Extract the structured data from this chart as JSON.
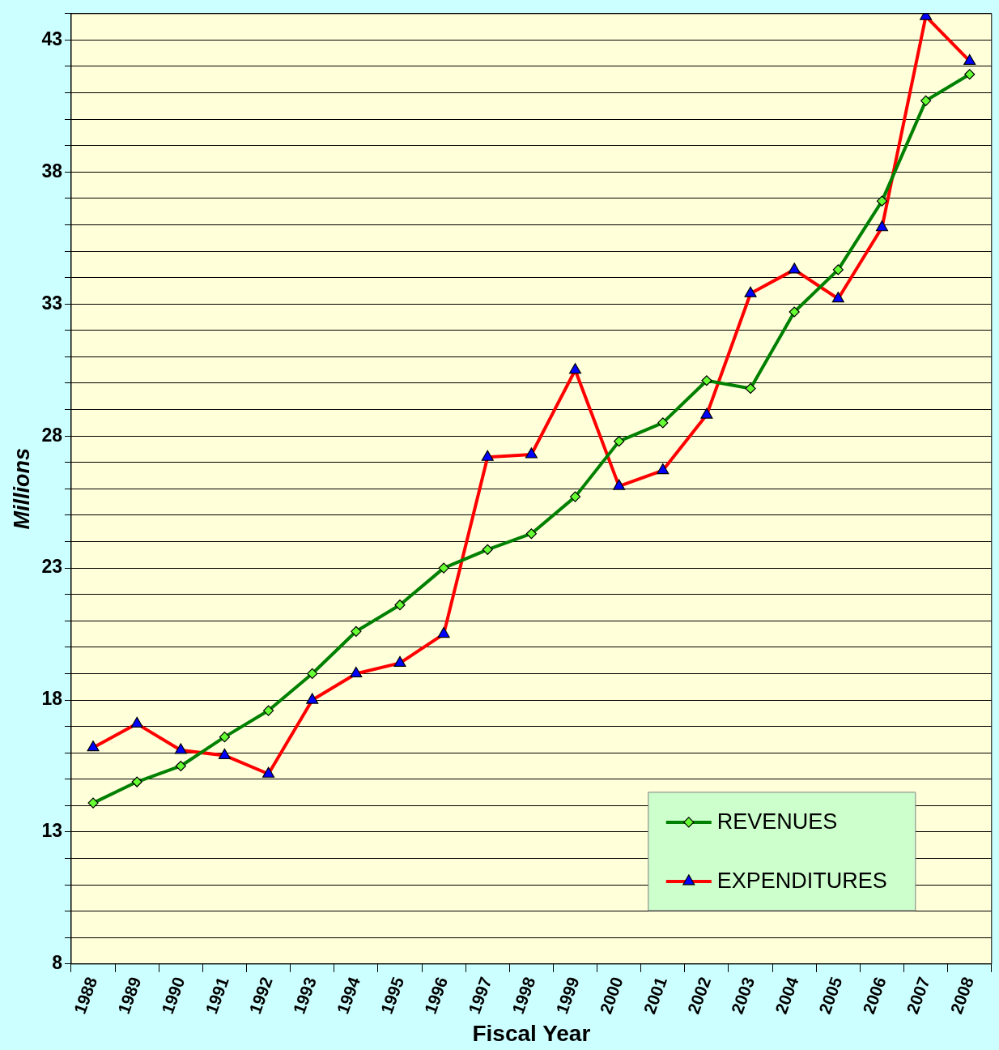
{
  "chart_data": {
    "type": "line",
    "xlabel": "Fiscal Year",
    "ylabel": "Millions",
    "categories": [
      "1988",
      "1989",
      "1990",
      "1991",
      "1992",
      "1993",
      "1994",
      "1995",
      "1996",
      "1997",
      "1998",
      "1999",
      "2000",
      "2001",
      "2002",
      "2003",
      "2004",
      "2005",
      "2006",
      "2007",
      "2008"
    ],
    "series": [
      {
        "name": "REVENUES",
        "color": "#008000",
        "marker": "diamond",
        "values": [
          14.1,
          14.9,
          15.5,
          16.6,
          17.6,
          19.0,
          20.6,
          21.6,
          23.0,
          23.7,
          24.3,
          25.7,
          27.8,
          28.5,
          30.1,
          29.8,
          32.7,
          34.3,
          36.9,
          40.7,
          41.7
        ]
      },
      {
        "name": "EXPENDITURES",
        "color": "#ff0000",
        "marker": "triangle",
        "values": [
          16.2,
          17.1,
          16.1,
          15.9,
          15.2,
          18.0,
          19.0,
          19.4,
          20.5,
          27.2,
          27.3,
          30.5,
          26.1,
          26.7,
          28.8,
          33.4,
          34.3,
          33.2,
          35.9,
          43.9,
          42.2
        ]
      }
    ],
    "ylim": [
      8,
      44
    ],
    "yticks": [
      8,
      {
        "value": 9,
        "label": null
      },
      {
        "value": 10,
        "label": null
      },
      {
        "value": 11,
        "label": null
      },
      {
        "value": 12,
        "label": null
      },
      13,
      {
        "value": 14,
        "label": null
      },
      {
        "value": 15,
        "label": null
      },
      {
        "value": 16,
        "label": null
      },
      {
        "value": 17,
        "label": null
      },
      18,
      {
        "value": 19,
        "label": null
      },
      {
        "value": 20,
        "label": null
      },
      {
        "value": 21,
        "label": null
      },
      {
        "value": 22,
        "label": null
      },
      23,
      {
        "value": 24,
        "label": null
      },
      {
        "value": 25,
        "label": null
      },
      {
        "value": 26,
        "label": null
      },
      {
        "value": 27,
        "label": null
      },
      28,
      {
        "value": 29,
        "label": null
      },
      {
        "value": 30,
        "label": null
      },
      {
        "value": 31,
        "label": null
      },
      {
        "value": 32,
        "label": null
      },
      33,
      {
        "value": 34,
        "label": null
      },
      {
        "value": 35,
        "label": null
      },
      {
        "value": 36,
        "label": null
      },
      {
        "value": 37,
        "label": null
      },
      38,
      {
        "value": 39,
        "label": null
      },
      {
        "value": 40,
        "label": null
      },
      {
        "value": 41,
        "label": null
      },
      {
        "value": 42,
        "label": null
      },
      43,
      {
        "value": 44,
        "label": null
      }
    ],
    "grid": "y",
    "legend": "bottom right",
    "line_style": "solid"
  }
}
